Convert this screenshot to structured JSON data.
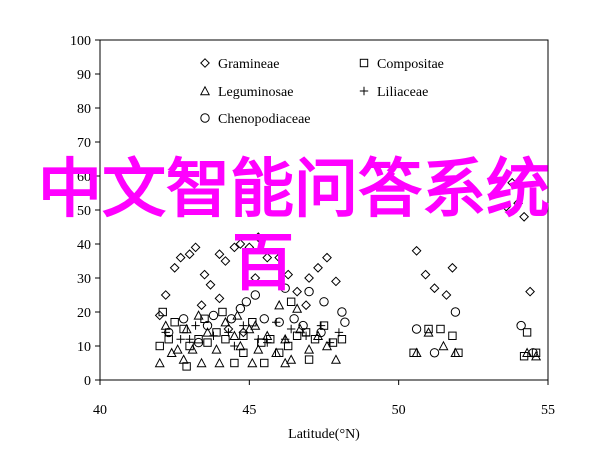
{
  "chart_data": {
    "type": "scatter",
    "xlabel": "Latitude(°N)",
    "ylabel": "",
    "xlim": [
      40,
      55
    ],
    "ylim": [
      0,
      100
    ],
    "x_ticks": [
      "40",
      "45",
      "50",
      "55"
    ],
    "y_ticks": [
      "0",
      "10",
      "20",
      "30",
      "40",
      "50",
      "60",
      "70",
      "80",
      "90",
      "100"
    ],
    "grid": false,
    "legend_position": "top-center",
    "series": [
      {
        "name": "Gramineae",
        "marker": "diamond",
        "points": [
          [
            42.0,
            19
          ],
          [
            42.2,
            25
          ],
          [
            42.5,
            33
          ],
          [
            42.7,
            36
          ],
          [
            43.0,
            37
          ],
          [
            43.2,
            39
          ],
          [
            43.5,
            31
          ],
          [
            43.7,
            28
          ],
          [
            44.0,
            37
          ],
          [
            44.2,
            35
          ],
          [
            44.5,
            39
          ],
          [
            44.7,
            40
          ],
          [
            45.0,
            39
          ],
          [
            45.3,
            42
          ],
          [
            45.6,
            36
          ],
          [
            46.0,
            36
          ],
          [
            46.3,
            31
          ],
          [
            46.6,
            26
          ],
          [
            47.0,
            30
          ],
          [
            47.3,
            33
          ],
          [
            47.6,
            36
          ],
          [
            47.9,
            29
          ],
          [
            44.3,
            15
          ],
          [
            44.8,
            14
          ],
          [
            43.4,
            22
          ],
          [
            44.0,
            24
          ],
          [
            45.2,
            30
          ],
          [
            46.9,
            22
          ],
          [
            50.6,
            38
          ],
          [
            50.9,
            31
          ],
          [
            51.2,
            27
          ],
          [
            51.6,
            25
          ],
          [
            51.8,
            33
          ],
          [
            53.8,
            58
          ],
          [
            54.0,
            52
          ],
          [
            54.2,
            48
          ],
          [
            54.4,
            26
          ],
          [
            53.6,
            51
          ]
        ]
      },
      {
        "name": "Compositae",
        "marker": "square",
        "points": [
          [
            42.0,
            10
          ],
          [
            42.3,
            12
          ],
          [
            42.5,
            17
          ],
          [
            42.8,
            15
          ],
          [
            43.0,
            10
          ],
          [
            43.3,
            12
          ],
          [
            43.6,
            11
          ],
          [
            43.9,
            14
          ],
          [
            44.2,
            12
          ],
          [
            44.5,
            5
          ],
          [
            44.8,
            13
          ],
          [
            45.1,
            17
          ],
          [
            45.4,
            11
          ],
          [
            45.7,
            12
          ],
          [
            46.0,
            8
          ],
          [
            46.3,
            10
          ],
          [
            46.6,
            13
          ],
          [
            46.9,
            14
          ],
          [
            47.2,
            12
          ],
          [
            47.5,
            16
          ],
          [
            47.8,
            11
          ],
          [
            48.1,
            12
          ],
          [
            43.5,
            18
          ],
          [
            44.1,
            20
          ],
          [
            44.8,
            8
          ],
          [
            45.5,
            5
          ],
          [
            46.4,
            23
          ],
          [
            47.0,
            6
          ],
          [
            42.1,
            20
          ],
          [
            42.9,
            4
          ],
          [
            50.5,
            8
          ],
          [
            51.0,
            15
          ],
          [
            51.4,
            15
          ],
          [
            51.8,
            13
          ],
          [
            52.0,
            8
          ],
          [
            54.3,
            14
          ],
          [
            54.6,
            8
          ],
          [
            54.2,
            7
          ]
        ]
      },
      {
        "name": "Leguminosae",
        "marker": "triangle",
        "points": [
          [
            42.0,
            5
          ],
          [
            42.2,
            16
          ],
          [
            42.4,
            8
          ],
          [
            42.6,
            9
          ],
          [
            42.9,
            15
          ],
          [
            43.1,
            9
          ],
          [
            43.4,
            5
          ],
          [
            43.6,
            14
          ],
          [
            43.9,
            9
          ],
          [
            44.2,
            17
          ],
          [
            44.5,
            13
          ],
          [
            44.7,
            10
          ],
          [
            45.0,
            15
          ],
          [
            45.3,
            9
          ],
          [
            45.6,
            13
          ],
          [
            45.9,
            8
          ],
          [
            46.2,
            12
          ],
          [
            46.4,
            6
          ],
          [
            46.7,
            15
          ],
          [
            47.0,
            9
          ],
          [
            47.3,
            13
          ],
          [
            47.6,
            10
          ],
          [
            47.9,
            6
          ],
          [
            44.0,
            5
          ],
          [
            44.6,
            19
          ],
          [
            45.1,
            5
          ],
          [
            46.0,
            22
          ],
          [
            46.6,
            21
          ],
          [
            42.8,
            6
          ],
          [
            46.2,
            5
          ],
          [
            50.6,
            8
          ],
          [
            51.0,
            14
          ],
          [
            51.5,
            10
          ],
          [
            51.9,
            8
          ],
          [
            54.3,
            8
          ],
          [
            54.6,
            7
          ],
          [
            45.2,
            16
          ],
          [
            43.3,
            19
          ]
        ]
      },
      {
        "name": "Liliaceae",
        "marker": "plus",
        "points": [
          [
            42.2,
            14
          ],
          [
            42.7,
            12
          ],
          [
            43.2,
            16
          ],
          [
            43.8,
            13
          ],
          [
            44.3,
            14
          ],
          [
            44.8,
            16
          ],
          [
            45.3,
            12
          ],
          [
            45.9,
            17
          ],
          [
            46.4,
            15
          ],
          [
            46.9,
            13
          ],
          [
            47.4,
            16
          ],
          [
            44.5,
            10
          ],
          [
            45.6,
            11
          ],
          [
            46.2,
            12
          ],
          [
            47.7,
            11
          ],
          [
            43.0,
            12
          ],
          [
            48.0,
            14
          ]
        ]
      },
      {
        "name": "Chenopodiaceae",
        "marker": "circle",
        "points": [
          [
            42.3,
            14
          ],
          [
            42.8,
            18
          ],
          [
            43.3,
            11
          ],
          [
            43.8,
            19
          ],
          [
            44.4,
            18
          ],
          [
            44.9,
            23
          ],
          [
            45.5,
            18
          ],
          [
            46.0,
            17
          ],
          [
            46.5,
            18
          ],
          [
            47.0,
            26
          ],
          [
            47.5,
            23
          ],
          [
            48.1,
            20
          ],
          [
            48.2,
            17
          ],
          [
            45.2,
            25
          ],
          [
            46.2,
            27
          ],
          [
            43.6,
            16
          ],
          [
            44.7,
            21
          ],
          [
            46.8,
            16
          ],
          [
            47.4,
            14
          ],
          [
            51.9,
            20
          ],
          [
            51.2,
            8
          ],
          [
            50.6,
            15
          ],
          [
            54.1,
            16
          ],
          [
            54.5,
            8
          ]
        ]
      }
    ]
  },
  "overlay": {
    "title": "中文智能问答系统",
    "subtitle": "百"
  },
  "colors": {
    "overlay": "#ff00ff",
    "marks": "#000000",
    "axis": "#000000"
  }
}
